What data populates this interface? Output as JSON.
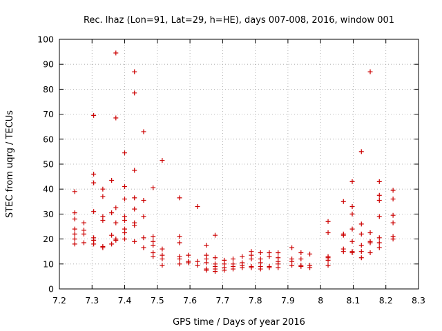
{
  "chart_data": {
    "type": "scatter",
    "title": "Rec. lhaz (Lon=91, Lat=29, h=HE), days 007-008, 2016, window 001",
    "xlabel": "GPS time / Days of year 2016",
    "ylabel": "STEC from uqrg / TECUs",
    "xlim": [
      7.2,
      8.3
    ],
    "ylim": [
      0,
      100
    ],
    "xticks": [
      "7.2",
      "7.3",
      "7.4",
      "7.5",
      "7.6",
      "7.7",
      "7.8",
      "7.9",
      "8",
      "8.1",
      "8.2",
      "8.3"
    ],
    "yticks": [
      "0",
      "10",
      "20",
      "30",
      "40",
      "50",
      "60",
      "70",
      "80",
      "90",
      "100"
    ],
    "grid": true,
    "marker": "plus",
    "color": "#cc0000",
    "points": [
      [
        7.247,
        39
      ],
      [
        7.247,
        30.5
      ],
      [
        7.247,
        28
      ],
      [
        7.247,
        24
      ],
      [
        7.247,
        22
      ],
      [
        7.247,
        20
      ],
      [
        7.247,
        18
      ],
      [
        7.275,
        26.5
      ],
      [
        7.275,
        23.5
      ],
      [
        7.275,
        22
      ],
      [
        7.275,
        18.5
      ],
      [
        7.305,
        69.5
      ],
      [
        7.305,
        46
      ],
      [
        7.305,
        42.5
      ],
      [
        7.305,
        31
      ],
      [
        7.305,
        20.5
      ],
      [
        7.305,
        19.5
      ],
      [
        7.305,
        18
      ],
      [
        7.333,
        40
      ],
      [
        7.333,
        37
      ],
      [
        7.333,
        29
      ],
      [
        7.333,
        27.5
      ],
      [
        7.333,
        17
      ],
      [
        7.333,
        16.5
      ],
      [
        7.36,
        43.5
      ],
      [
        7.36,
        30.5
      ],
      [
        7.36,
        21.5
      ],
      [
        7.36,
        18
      ],
      [
        7.373,
        94.5
      ],
      [
        7.373,
        68.5
      ],
      [
        7.373,
        32.5
      ],
      [
        7.373,
        26.5
      ],
      [
        7.373,
        20
      ],
      [
        7.373,
        19.5
      ],
      [
        7.4,
        54.5
      ],
      [
        7.4,
        41
      ],
      [
        7.4,
        36
      ],
      [
        7.4,
        29
      ],
      [
        7.4,
        27.5
      ],
      [
        7.4,
        24
      ],
      [
        7.4,
        22.5
      ],
      [
        7.4,
        20
      ],
      [
        7.43,
        87
      ],
      [
        7.43,
        78.5
      ],
      [
        7.43,
        47.5
      ],
      [
        7.43,
        36.5
      ],
      [
        7.43,
        32
      ],
      [
        7.43,
        26.5
      ],
      [
        7.43,
        25.5
      ],
      [
        7.43,
        19
      ],
      [
        7.458,
        63
      ],
      [
        7.458,
        35.5
      ],
      [
        7.458,
        29
      ],
      [
        7.458,
        20.5
      ],
      [
        7.458,
        16.5
      ],
      [
        7.487,
        40.5
      ],
      [
        7.487,
        21
      ],
      [
        7.487,
        19
      ],
      [
        7.487,
        17.5
      ],
      [
        7.487,
        14.5
      ],
      [
        7.487,
        13
      ],
      [
        7.515,
        51.5
      ],
      [
        7.515,
        16
      ],
      [
        7.515,
        13.5
      ],
      [
        7.515,
        12
      ],
      [
        7.515,
        9.5
      ],
      [
        7.568,
        36.5
      ],
      [
        7.568,
        21
      ],
      [
        7.568,
        18.5
      ],
      [
        7.568,
        13
      ],
      [
        7.568,
        12
      ],
      [
        7.568,
        10
      ],
      [
        7.595,
        13.5
      ],
      [
        7.595,
        11
      ],
      [
        7.595,
        10.5
      ],
      [
        7.623,
        33
      ],
      [
        7.623,
        11
      ],
      [
        7.623,
        9.5
      ],
      [
        7.65,
        17.5
      ],
      [
        7.65,
        13.5
      ],
      [
        7.65,
        12
      ],
      [
        7.65,
        10.5
      ],
      [
        7.65,
        8
      ],
      [
        7.65,
        7.5
      ],
      [
        7.677,
        21.5
      ],
      [
        7.677,
        12.5
      ],
      [
        7.677,
        10
      ],
      [
        7.677,
        9
      ],
      [
        7.677,
        8
      ],
      [
        7.677,
        7
      ],
      [
        7.705,
        11.5
      ],
      [
        7.705,
        10
      ],
      [
        7.705,
        8.5
      ],
      [
        7.705,
        7.5
      ],
      [
        7.732,
        12
      ],
      [
        7.732,
        10
      ],
      [
        7.732,
        9
      ],
      [
        7.732,
        8
      ],
      [
        7.76,
        13
      ],
      [
        7.76,
        10.5
      ],
      [
        7.76,
        9.5
      ],
      [
        7.76,
        8.5
      ],
      [
        7.788,
        15
      ],
      [
        7.788,
        13.5
      ],
      [
        7.788,
        12
      ],
      [
        7.788,
        9
      ],
      [
        7.788,
        8.5
      ],
      [
        7.816,
        14.5
      ],
      [
        7.816,
        12
      ],
      [
        7.816,
        10.5
      ],
      [
        7.816,
        9
      ],
      [
        7.816,
        8
      ],
      [
        7.843,
        14.5
      ],
      [
        7.843,
        13
      ],
      [
        7.843,
        9
      ],
      [
        7.843,
        8.5
      ],
      [
        7.87,
        14.5
      ],
      [
        7.87,
        12.5
      ],
      [
        7.87,
        11
      ],
      [
        7.87,
        10
      ],
      [
        7.87,
        8.5
      ],
      [
        7.912,
        16.5
      ],
      [
        7.912,
        12
      ],
      [
        7.912,
        11
      ],
      [
        7.912,
        9.5
      ],
      [
        7.94,
        14.5
      ],
      [
        7.94,
        12
      ],
      [
        7.94,
        9.5
      ],
      [
        7.94,
        9
      ],
      [
        7.967,
        14
      ],
      [
        7.967,
        9.5
      ],
      [
        7.967,
        8.5
      ],
      [
        8.023,
        27
      ],
      [
        8.023,
        22.5
      ],
      [
        8.023,
        13
      ],
      [
        8.023,
        12.5
      ],
      [
        8.023,
        11.5
      ],
      [
        8.023,
        9.5
      ],
      [
        8.07,
        35
      ],
      [
        8.07,
        22
      ],
      [
        8.07,
        21.5
      ],
      [
        8.07,
        16
      ],
      [
        8.07,
        15
      ],
      [
        8.097,
        43
      ],
      [
        8.097,
        33
      ],
      [
        8.097,
        30
      ],
      [
        8.097,
        24
      ],
      [
        8.097,
        19
      ],
      [
        8.097,
        15
      ],
      [
        8.097,
        14.5
      ],
      [
        8.125,
        55
      ],
      [
        8.125,
        26
      ],
      [
        8.125,
        22
      ],
      [
        8.125,
        17.5
      ],
      [
        8.125,
        15
      ],
      [
        8.125,
        12.5
      ],
      [
        8.152,
        87
      ],
      [
        8.152,
        22.5
      ],
      [
        8.152,
        19
      ],
      [
        8.152,
        18.5
      ],
      [
        8.152,
        14.5
      ],
      [
        8.18,
        43
      ],
      [
        8.18,
        37.5
      ],
      [
        8.18,
        35.5
      ],
      [
        8.18,
        29
      ],
      [
        8.18,
        20.5
      ],
      [
        8.18,
        18.5
      ],
      [
        8.18,
        16.5
      ],
      [
        8.222,
        39.5
      ],
      [
        8.222,
        36
      ],
      [
        8.222,
        29.5
      ],
      [
        8.222,
        26.5
      ],
      [
        8.222,
        21
      ],
      [
        8.222,
        20
      ]
    ]
  }
}
